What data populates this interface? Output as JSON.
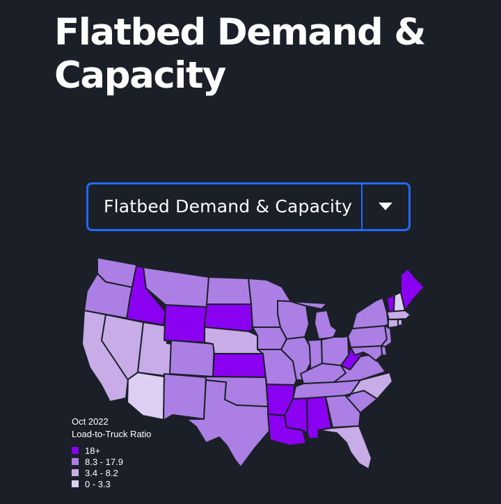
{
  "page": {
    "title": "Flatbed Demand & Capacity"
  },
  "selector": {
    "selected": "Flatbed Demand & Capacity",
    "toggle_icon": "caret-down-icon"
  },
  "legend": {
    "period": "Oct 2022",
    "metric": "Load-to-Truck Ratio",
    "items": [
      {
        "label": "18+",
        "color": "#8a00f0"
      },
      {
        "label": "8.3 - 17.9",
        "color": "#ac7fe4"
      },
      {
        "label": "3.4 - 8.2",
        "color": "#c8ace8"
      },
      {
        "label": "0 - 3.3",
        "color": "#ddcff2"
      }
    ]
  },
  "map": {
    "border_color": "#1b2028",
    "states": [
      {
        "code": "WA",
        "bin": 1
      },
      {
        "code": "OR",
        "bin": 1
      },
      {
        "code": "CA",
        "bin": 2
      },
      {
        "code": "ID",
        "bin": 0
      },
      {
        "code": "NV",
        "bin": 2
      },
      {
        "code": "AZ",
        "bin": 3
      },
      {
        "code": "MT",
        "bin": 1
      },
      {
        "code": "WY",
        "bin": 0
      },
      {
        "code": "UT",
        "bin": 2
      },
      {
        "code": "CO",
        "bin": 1
      },
      {
        "code": "NM",
        "bin": 1
      },
      {
        "code": "ND",
        "bin": 1
      },
      {
        "code": "SD",
        "bin": 0
      },
      {
        "code": "NE",
        "bin": 2
      },
      {
        "code": "KS",
        "bin": 0
      },
      {
        "code": "OK",
        "bin": 1
      },
      {
        "code": "TX",
        "bin": 1
      },
      {
        "code": "MN",
        "bin": 1
      },
      {
        "code": "IA",
        "bin": 1
      },
      {
        "code": "MO",
        "bin": 1
      },
      {
        "code": "AR",
        "bin": 0
      },
      {
        "code": "LA",
        "bin": 0
      },
      {
        "code": "WI",
        "bin": 1
      },
      {
        "code": "IL",
        "bin": 1
      },
      {
        "code": "MI",
        "bin": 1
      },
      {
        "code": "IN",
        "bin": 1
      },
      {
        "code": "OH",
        "bin": 1
      },
      {
        "code": "KY",
        "bin": 1
      },
      {
        "code": "TN",
        "bin": 1
      },
      {
        "code": "MS",
        "bin": 0
      },
      {
        "code": "AL",
        "bin": 0
      },
      {
        "code": "GA",
        "bin": 1
      },
      {
        "code": "FL",
        "bin": 2
      },
      {
        "code": "SC",
        "bin": 1
      },
      {
        "code": "NC",
        "bin": 2
      },
      {
        "code": "VA",
        "bin": 1
      },
      {
        "code": "WV",
        "bin": 0
      },
      {
        "code": "PA",
        "bin": 1
      },
      {
        "code": "NY",
        "bin": 1
      },
      {
        "code": "VT",
        "bin": 0
      },
      {
        "code": "NH",
        "bin": 3
      },
      {
        "code": "ME",
        "bin": 0
      },
      {
        "code": "MA",
        "bin": 2
      },
      {
        "code": "CT",
        "bin": 2
      },
      {
        "code": "RI",
        "bin": 2
      },
      {
        "code": "NJ",
        "bin": 1
      },
      {
        "code": "DE",
        "bin": 1
      },
      {
        "code": "MD",
        "bin": 1
      }
    ]
  }
}
